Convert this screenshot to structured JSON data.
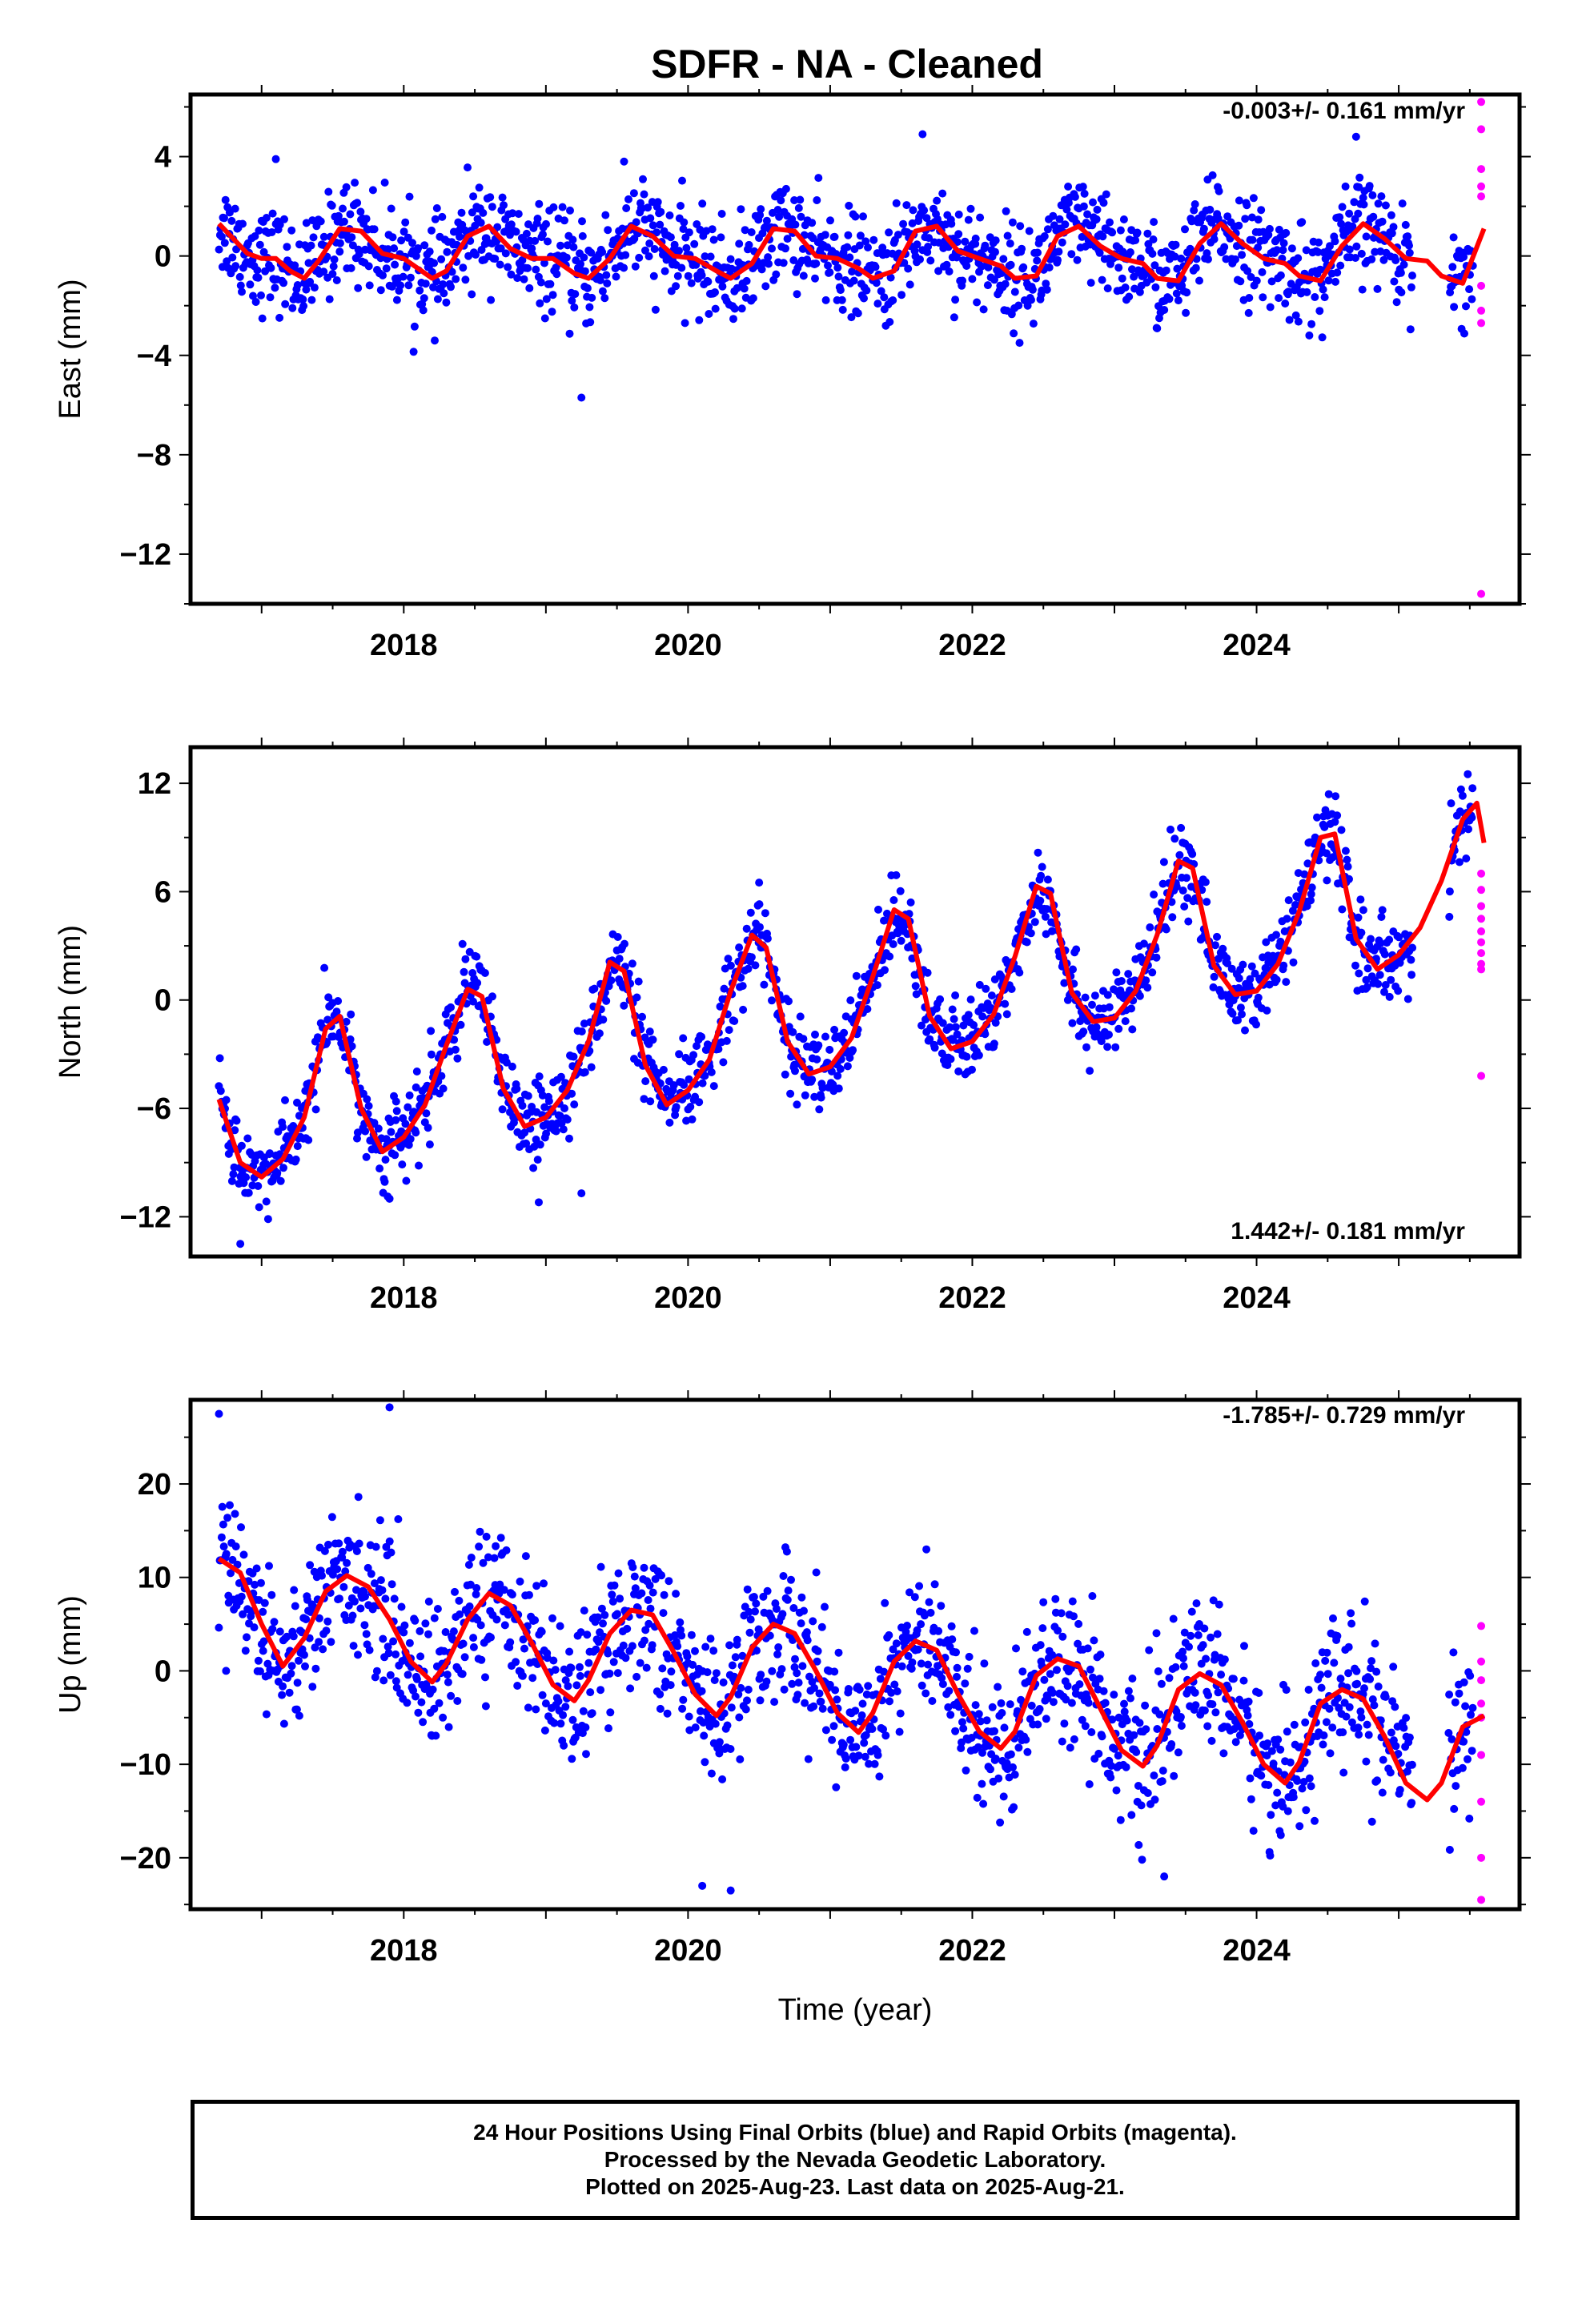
{
  "title": "SDFR  - NA - Cleaned",
  "colors": {
    "final": "#0000ff",
    "rapid": "#ff00ff",
    "model": "#ff0000",
    "axis": "#000000"
  },
  "footer": {
    "line1": "24 Hour Positions Using Final Orbits (blue) and Rapid Orbits (magenta).",
    "line2": "Processed by the Nevada Geodetic Laboratory.",
    "line3": "Plotted on 2025-Aug-23. Last data on 2025-Aug-21."
  },
  "chart_data": [
    {
      "type": "scatter",
      "ylabel": "East (mm)",
      "xlabel": "",
      "rate_text": "-0.003+/- 0.161 mm/yr",
      "xlim": [
        2016.5,
        2025.85
      ],
      "ylim": [
        -14,
        6.5
      ],
      "yticks": [
        4,
        0,
        -4,
        -8,
        -12
      ],
      "xticks": [
        2018,
        2020,
        2022,
        2024
      ],
      "model": {
        "name": "model fit",
        "x": [
          2016.7,
          2016.9,
          2017.0,
          2017.1,
          2017.2,
          2017.3,
          2017.4,
          2017.55,
          2017.7,
          2017.85,
          2018.0,
          2018.1,
          2018.2,
          2018.3,
          2018.45,
          2018.6,
          2018.75,
          2018.9,
          2019.05,
          2019.2,
          2019.3,
          2019.45,
          2019.6,
          2019.75,
          2019.9,
          2020.05,
          2020.2,
          2020.3,
          2020.45,
          2020.6,
          2020.75,
          2020.9,
          2021.05,
          2021.2,
          2021.3,
          2021.45,
          2021.6,
          2021.75,
          2021.9,
          2022.05,
          2022.2,
          2022.3,
          2022.45,
          2022.6,
          2022.75,
          2022.9,
          2023.05,
          2023.2,
          2023.3,
          2023.45,
          2023.6,
          2023.75,
          2023.9,
          2024.05,
          2024.2,
          2024.3,
          2024.45,
          2024.6,
          2024.75,
          2024.9,
          2025.05,
          2025.2,
          2025.3,
          2025.45,
          2025.6
        ],
        "y": [
          1.3,
          0.1,
          -0.1,
          -0.1,
          -0.6,
          -0.9,
          -0.2,
          1.1,
          1.0,
          0.1,
          -0.1,
          -0.5,
          -0.9,
          -0.6,
          0.8,
          1.2,
          0.3,
          -0.1,
          -0.1,
          -0.7,
          -0.9,
          -0.1,
          1.2,
          0.8,
          0.0,
          -0.1,
          -0.6,
          -0.9,
          -0.3,
          1.1,
          1.0,
          0.0,
          -0.1,
          -0.5,
          -0.9,
          -0.6,
          1.0,
          1.2,
          0.2,
          -0.1,
          -0.4,
          -0.9,
          -0.8,
          0.8,
          1.2,
          0.4,
          -0.1,
          -0.3,
          -0.9,
          -1.0,
          0.5,
          1.3,
          0.5,
          -0.1,
          -0.3,
          -0.8,
          -1.0,
          0.4,
          1.3,
          0.7,
          -0.1,
          -0.2,
          -0.8,
          -1.1,
          1.1
        ]
      },
      "rapid": {
        "x": [
          2025.58,
          2025.58,
          2025.58,
          2025.58,
          2025.58,
          2025.58,
          2025.58,
          2025.58,
          2025.58
        ],
        "y": [
          6.2,
          5.1,
          3.5,
          2.8,
          2.4,
          -1.2,
          -2.2,
          -2.7,
          -13.6
        ]
      },
      "scatter": {
        "spread": 1.0,
        "outliers": [
          [
            2019.25,
            -5.7
          ],
          [
            2017.1,
            3.9
          ],
          [
            2019.55,
            3.8
          ],
          [
            2021.65,
            4.9
          ],
          [
            2024.7,
            4.8
          ]
        ]
      }
    },
    {
      "type": "scatter",
      "ylabel": "North (mm)",
      "xlabel": "",
      "rate_text": "1.442+/- 0.181 mm/yr",
      "xlim": [
        2016.5,
        2025.85
      ],
      "ylim": [
        -14.2,
        14
      ],
      "yticks": [
        12,
        6,
        0,
        -6,
        -12
      ],
      "xticks": [
        2018,
        2020,
        2022,
        2024
      ],
      "model": {
        "name": "model fit",
        "x": [
          2016.7,
          2016.85,
          2017.0,
          2017.15,
          2017.3,
          2017.45,
          2017.55,
          2017.7,
          2017.85,
          2018.0,
          2018.15,
          2018.3,
          2018.45,
          2018.55,
          2018.7,
          2018.85,
          2019.0,
          2019.15,
          2019.3,
          2019.45,
          2019.55,
          2019.7,
          2019.85,
          2020.0,
          2020.15,
          2020.3,
          2020.45,
          2020.55,
          2020.7,
          2020.85,
          2021.0,
          2021.15,
          2021.3,
          2021.45,
          2021.55,
          2021.7,
          2021.85,
          2022.0,
          2022.15,
          2022.3,
          2022.45,
          2022.55,
          2022.7,
          2022.85,
          2023.0,
          2023.15,
          2023.3,
          2023.45,
          2023.55,
          2023.7,
          2023.85,
          2024.0,
          2024.15,
          2024.3,
          2024.45,
          2024.55,
          2024.7,
          2024.85,
          2025.0,
          2025.15,
          2025.3,
          2025.45,
          2025.55,
          2025.6
        ],
        "y": [
          -5.5,
          -9.0,
          -9.8,
          -8.8,
          -6.5,
          -1.6,
          -0.9,
          -6.0,
          -8.4,
          -7.6,
          -5.8,
          -2.5,
          0.6,
          0.2,
          -4.9,
          -7.0,
          -6.5,
          -5.0,
          -2.3,
          2.1,
          1.6,
          -3.6,
          -5.8,
          -5.0,
          -3.3,
          0.5,
          3.6,
          2.9,
          -2.3,
          -4.1,
          -3.7,
          -2.1,
          1.3,
          5.0,
          4.5,
          -0.9,
          -2.7,
          -2.3,
          -0.8,
          2.4,
          6.3,
          5.9,
          0.4,
          -1.2,
          -1.0,
          0.5,
          3.6,
          7.7,
          7.3,
          1.9,
          0.3,
          0.5,
          2.0,
          4.9,
          9.0,
          9.2,
          3.4,
          1.7,
          2.5,
          4.0,
          6.6,
          10.0,
          10.9,
          8.7
        ]
      },
      "rapid": {
        "x": [
          2025.58,
          2025.58,
          2025.58,
          2025.58,
          2025.58,
          2025.58,
          2025.58,
          2025.58,
          2025.58,
          2025.58
        ],
        "y": [
          7.0,
          6.1,
          5.2,
          4.5,
          3.8,
          3.2,
          2.6,
          2.0,
          1.7,
          -4.2
        ]
      },
      "scatter": {
        "spread": 1.1,
        "outliers": [
          [
            2016.85,
            -13.5
          ],
          [
            2018.95,
            -11.2
          ],
          [
            2019.25,
            -10.7
          ],
          [
            2017.9,
            -11.0
          ],
          [
            2020.5,
            6.5
          ]
        ]
      }
    },
    {
      "type": "scatter",
      "ylabel": "Up (mm)",
      "xlabel": "Time (year)",
      "rate_text": "-1.785+/- 0.729 mm/yr",
      "xlim": [
        2016.5,
        2025.85
      ],
      "ylim": [
        -25.5,
        29
      ],
      "yticks": [
        20,
        10,
        0,
        -10,
        -20
      ],
      "xticks": [
        2018,
        2020,
        2022,
        2024
      ],
      "model": {
        "name": "model fit",
        "x": [
          2016.7,
          2016.85,
          2017.0,
          2017.15,
          2017.3,
          2017.45,
          2017.6,
          2017.75,
          2017.9,
          2018.05,
          2018.2,
          2018.3,
          2018.45,
          2018.6,
          2018.75,
          2018.9,
          2019.05,
          2019.2,
          2019.3,
          2019.45,
          2019.6,
          2019.75,
          2019.9,
          2020.05,
          2020.2,
          2020.3,
          2020.45,
          2020.6,
          2020.75,
          2020.9,
          2021.05,
          2021.2,
          2021.3,
          2021.45,
          2021.6,
          2021.75,
          2021.9,
          2022.05,
          2022.2,
          2022.3,
          2022.45,
          2022.6,
          2022.75,
          2022.9,
          2023.05,
          2023.2,
          2023.3,
          2023.45,
          2023.6,
          2023.75,
          2023.9,
          2024.05,
          2024.2,
          2024.3,
          2024.45,
          2024.6,
          2024.75,
          2024.9,
          2025.05,
          2025.2,
          2025.3,
          2025.45,
          2025.6
        ],
        "y": [
          12.0,
          10.5,
          5.0,
          0.5,
          3.5,
          8.5,
          10.2,
          9.0,
          5.5,
          1.0,
          -1.2,
          0.8,
          5.5,
          8.3,
          7.0,
          3.0,
          -1.5,
          -3.2,
          -1.0,
          4.0,
          6.5,
          6.0,
          2.0,
          -2.5,
          -4.8,
          -2.8,
          2.5,
          5.0,
          4.0,
          0.0,
          -4.5,
          -6.6,
          -4.5,
          1.0,
          3.2,
          2.2,
          -2.5,
          -6.5,
          -8.3,
          -6.5,
          -0.5,
          1.3,
          0.5,
          -4.0,
          -8.5,
          -10.2,
          -8.0,
          -2.0,
          -0.3,
          -1.5,
          -5.5,
          -10.0,
          -12.0,
          -9.8,
          -3.5,
          -2.0,
          -3.0,
          -7.0,
          -12.0,
          -13.8,
          -12.0,
          -6.0,
          -4.8
        ]
      },
      "rapid": {
        "x": [
          2025.58,
          2025.58,
          2025.58,
          2025.58,
          2025.58,
          2025.58,
          2025.58,
          2025.58,
          2025.58
        ],
        "y": [
          4.8,
          1.0,
          -1.0,
          -3.5,
          -5.0,
          -9.0,
          -14.0,
          -20.0,
          -24.5
        ]
      },
      "scatter": {
        "spread": 3.8,
        "outliers": [
          [
            2016.7,
            27.5
          ],
          [
            2017.9,
            28.2
          ],
          [
            2020.1,
            -23.0
          ],
          [
            2020.3,
            -23.5
          ],
          [
            2023.35,
            -22.0
          ],
          [
            2016.75,
            0.0
          ]
        ]
      }
    }
  ]
}
